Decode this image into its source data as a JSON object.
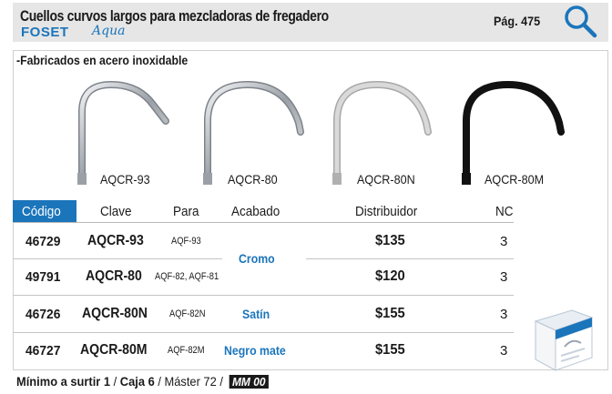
{
  "header": {
    "title": "Cuellos curvos largos para mezcladoras de fregadero",
    "brand": "FOSET",
    "brand_sub": "Aqua",
    "page": "Pág. 475",
    "search_icon": "search-icon",
    "background": "#e6e6e6",
    "accent": "#1b75bb"
  },
  "section": {
    "subtitle": "-Fabricados en acero inoxidable"
  },
  "products": [
    {
      "name": "AQCR-93",
      "finish_color": "#c9ccd0"
    },
    {
      "name": "AQCR-80",
      "finish_color": "#c9ccd0"
    },
    {
      "name": "AQCR-80N",
      "finish_color": "#d4d4d4"
    },
    {
      "name": "AQCR-80M",
      "finish_color": "#1a1a1a"
    }
  ],
  "table": {
    "headers": [
      "Código",
      "Clave",
      "Para",
      "Acabado",
      "Distribuidor",
      "NC"
    ],
    "rows": [
      {
        "codigo": "46729",
        "clave": "AQCR-93",
        "para": "AQF-93",
        "distribuidor": "$135",
        "nc": "3"
      },
      {
        "codigo": "49791",
        "clave": "AQCR-80",
        "para": "AQF-82, AQF-81",
        "distribuidor": "$120",
        "nc": "3"
      },
      {
        "codigo": "46726",
        "clave": "AQCR-80N",
        "para": "AQF-82N",
        "distribuidor": "$155",
        "nc": "3"
      },
      {
        "codigo": "46727",
        "clave": "AQCR-80M",
        "para": "AQF-82M",
        "distribuidor": "$155",
        "nc": "3"
      }
    ],
    "acabados": [
      "Cromo",
      "Satín",
      "Negro mate"
    ]
  },
  "footer": {
    "minimo": "Mínimo a surtir 1",
    "caja": "Caja 6",
    "master": "Máster 72",
    "mm": "MM 00"
  }
}
